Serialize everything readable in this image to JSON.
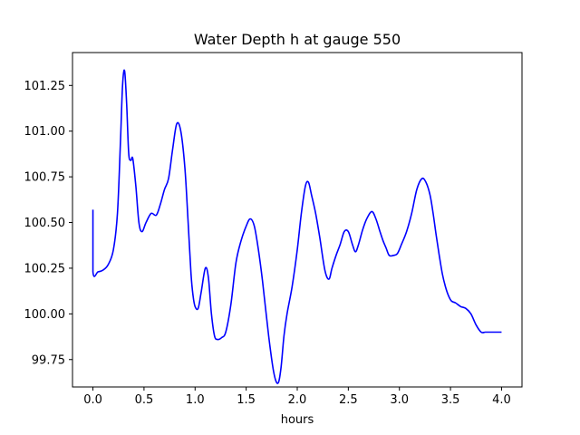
{
  "chart_data": {
    "type": "line",
    "title": "Water Depth h at gauge 550",
    "xlabel": "hours",
    "ylabel": "",
    "xlim": [
      -0.2,
      4.2
    ],
    "ylim": [
      99.6,
      101.43
    ],
    "xticks": [
      0.0,
      0.5,
      1.0,
      1.5,
      2.0,
      2.5,
      3.0,
      3.5,
      4.0
    ],
    "xtick_labels": [
      "0.0",
      "0.5",
      "1.0",
      "1.5",
      "2.0",
      "2.5",
      "3.0",
      "3.5",
      "4.0"
    ],
    "yticks": [
      99.75,
      100.0,
      100.25,
      100.5,
      100.75,
      101.0,
      101.25
    ],
    "ytick_labels": [
      "99.75",
      "100.00",
      "100.25",
      "100.50",
      "100.75",
      "101.00",
      "101.25"
    ],
    "grid": false,
    "legend": "none",
    "series": [
      {
        "color": "#0000ff",
        "x": [
          0.0,
          0.0,
          0.05,
          0.1,
          0.15,
          0.2,
          0.24,
          0.27,
          0.29,
          0.31,
          0.33,
          0.35,
          0.37,
          0.39,
          0.42,
          0.45,
          0.48,
          0.52,
          0.57,
          0.62,
          0.66,
          0.7,
          0.74,
          0.78,
          0.82,
          0.86,
          0.9,
          0.93,
          0.96,
          0.98,
          1.0,
          1.03,
          1.06,
          1.1,
          1.13,
          1.16,
          1.19,
          1.22,
          1.26,
          1.3,
          1.35,
          1.4,
          1.45,
          1.5,
          1.54,
          1.58,
          1.62,
          1.66,
          1.72,
          1.77,
          1.81,
          1.84,
          1.87,
          1.9,
          1.95,
          2.0,
          2.04,
          2.08,
          2.11,
          2.14,
          2.18,
          2.22,
          2.27,
          2.31,
          2.34,
          2.38,
          2.42,
          2.46,
          2.5,
          2.54,
          2.57,
          2.6,
          2.64,
          2.68,
          2.73,
          2.77,
          2.81,
          2.84,
          2.87,
          2.9,
          2.94,
          2.98,
          3.02,
          3.07,
          3.12,
          3.17,
          3.22,
          3.26,
          3.3,
          3.33,
          3.36,
          3.39,
          3.42,
          3.45,
          3.48,
          3.51,
          3.55,
          3.6,
          3.65,
          3.7,
          3.75,
          3.8,
          3.84,
          3.88,
          3.92,
          3.96,
          4.0
        ],
        "y": [
          100.57,
          100.23,
          100.23,
          100.24,
          100.27,
          100.35,
          100.55,
          100.95,
          101.25,
          101.33,
          101.15,
          100.88,
          100.84,
          100.85,
          100.7,
          100.5,
          100.45,
          100.5,
          100.55,
          100.54,
          100.6,
          100.68,
          100.74,
          100.9,
          101.04,
          101.0,
          100.8,
          100.52,
          100.22,
          100.1,
          100.04,
          100.03,
          100.12,
          100.25,
          100.2,
          100.0,
          99.88,
          99.86,
          99.87,
          99.9,
          100.05,
          100.28,
          100.4,
          100.48,
          100.52,
          100.48,
          100.35,
          100.18,
          99.88,
          99.68,
          99.62,
          99.7,
          99.88,
          100.0,
          100.15,
          100.35,
          100.55,
          100.7,
          100.72,
          100.65,
          100.55,
          100.42,
          100.24,
          100.19,
          100.25,
          100.32,
          100.38,
          100.45,
          100.45,
          100.38,
          100.34,
          100.38,
          100.46,
          100.52,
          100.56,
          100.52,
          100.45,
          100.4,
          100.36,
          100.32,
          100.32,
          100.33,
          100.38,
          100.45,
          100.55,
          100.68,
          100.74,
          100.72,
          100.65,
          100.55,
          100.43,
          100.32,
          100.22,
          100.15,
          100.1,
          100.07,
          100.06,
          100.04,
          100.03,
          100.0,
          99.94,
          99.9,
          99.9,
          99.9,
          99.9,
          99.9,
          99.9
        ]
      }
    ]
  }
}
